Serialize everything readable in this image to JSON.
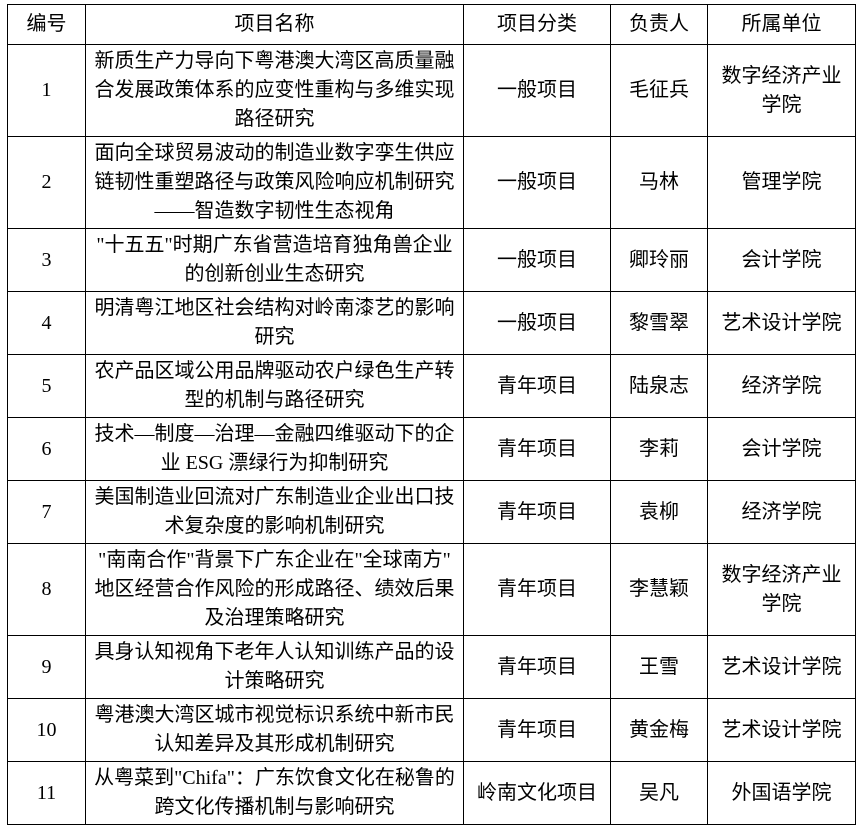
{
  "page": {
    "background_color": "#ffffff",
    "border_color": "#000000",
    "text_color": "#000000"
  },
  "table": {
    "headers": [
      "编号",
      "项目名称",
      "项目分类",
      "负责人",
      "所属单位"
    ],
    "rows": [
      {
        "no": "1",
        "name": "新质生产力导向下粤港澳大湾区高质量融\n合发展政策体系的应变性重构与多维实现\n路径研究",
        "category": "一般项目",
        "leader": "毛征兵",
        "unit": "数字经济产业\n学院"
      },
      {
        "no": "2",
        "name": "面向全球贸易波动的制造业数字孪生供应\n链韧性重塑路径与政策风险响应机制研究\n——智造数字韧性生态视角",
        "category": "一般项目",
        "leader": "马林",
        "unit": "管理学院"
      },
      {
        "no": "3",
        "name": "\"十五五\"时期广东省营造培育独角兽企业\n的创新创业生态研究",
        "category": "一般项目",
        "leader": "卿玲丽",
        "unit": "会计学院"
      },
      {
        "no": "4",
        "name": "明清粤江地区社会结构对岭南漆艺的影响\n研究",
        "category": "一般项目",
        "leader": "黎雪翠",
        "unit": "艺术设计学院"
      },
      {
        "no": "5",
        "name": "农产品区域公用品牌驱动农户绿色生产转\n型的机制与路径研究",
        "category": "青年项目",
        "leader": "陆泉志",
        "unit": "经济学院"
      },
      {
        "no": "6",
        "name": "技术—制度—治理—金融四维驱动下的企\n业 ESG 漂绿行为抑制研究",
        "category": "青年项目",
        "leader": "李莉",
        "unit": "会计学院"
      },
      {
        "no": "7",
        "name": "美国制造业回流对广东制造业企业出口技\n术复杂度的影响机制研究",
        "category": "青年项目",
        "leader": "袁柳",
        "unit": "经济学院"
      },
      {
        "no": "8",
        "name": "\"南南合作\"背景下广东企业在\"全球南方\"\n地区经营合作风险的形成路径、绩效后果\n及治理策略研究",
        "category": "青年项目",
        "leader": "李慧颖",
        "unit": "数字经济产业\n学院"
      },
      {
        "no": "9",
        "name": "具身认知视角下老年人认知训练产品的设\n计策略研究",
        "category": "青年项目",
        "leader": "王雪",
        "unit": "艺术设计学院"
      },
      {
        "no": "10",
        "name": "粤港澳大湾区城市视觉标识系统中新市民\n认知差异及其形成机制研究",
        "category": "青年项目",
        "leader": "黄金梅",
        "unit": "艺术设计学院"
      },
      {
        "no": "11",
        "name": "从粤菜到\"Chifa\"：广东饮食文化在秘鲁的\n跨文化传播机制与影响研究",
        "category": "岭南文化项目",
        "leader": "吴凡",
        "unit": "外国语学院"
      }
    ]
  }
}
